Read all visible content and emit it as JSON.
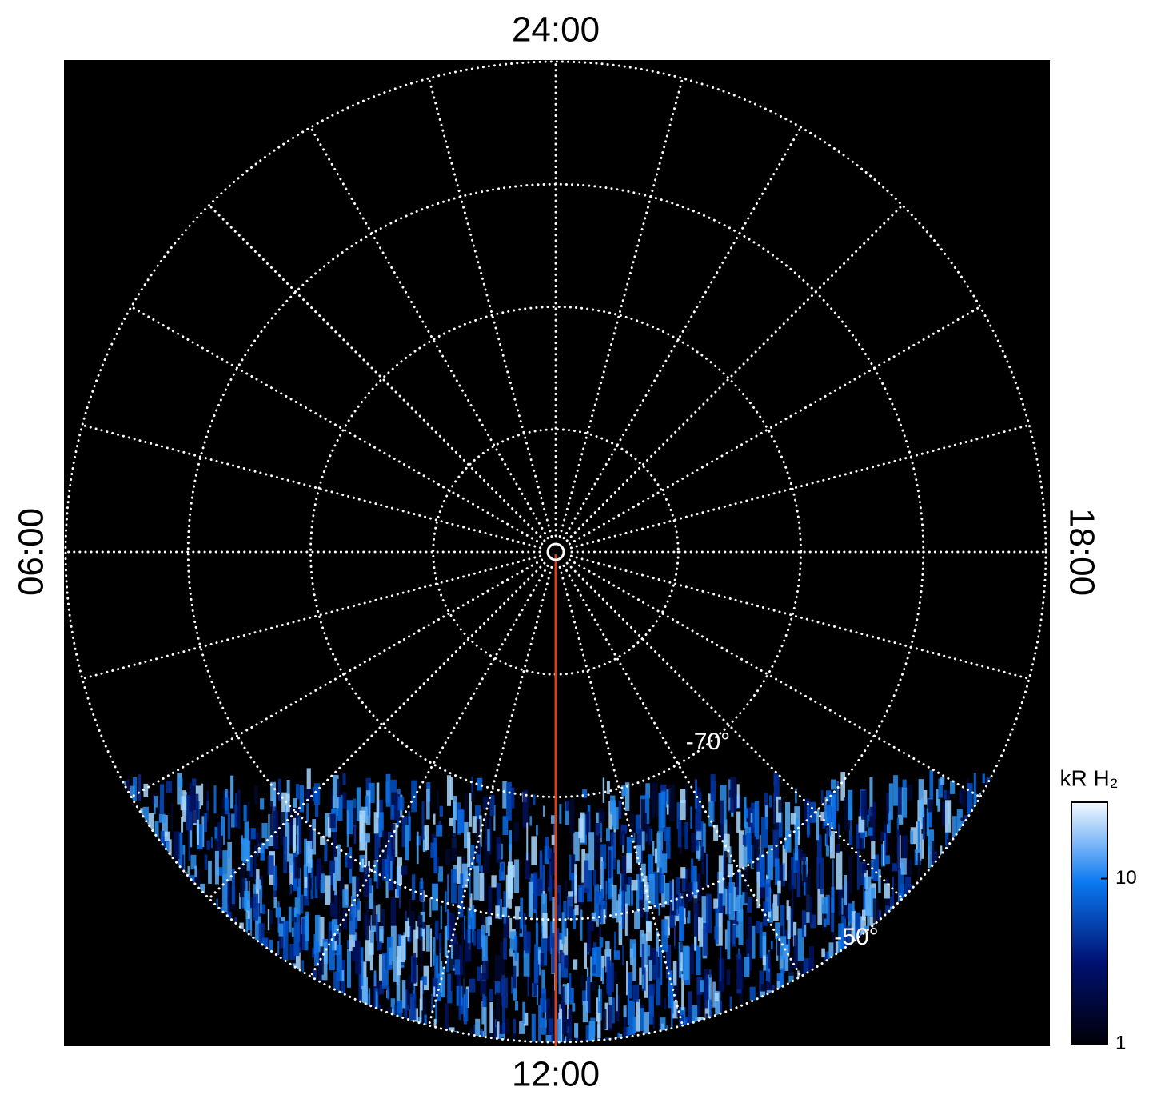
{
  "chart_data": {
    "type": "polar",
    "labels": {
      "top": "24:00",
      "left": "06:00",
      "right": "18:00",
      "bottom": "12:00"
    },
    "rlim": [
      -90,
      -50
    ],
    "grid_rings": [
      -80,
      -70,
      -60,
      -50
    ],
    "ring_labels": [
      {
        "value": -70,
        "label": "-70°"
      },
      {
        "value": -50,
        "label": "-50°"
      }
    ],
    "spoke_step_hours": 1,
    "colorbar": {
      "title": "kR H₂",
      "log": true,
      "lim": [
        1,
        29
      ],
      "ticks": [
        1,
        10
      ],
      "colors": [
        "#000008",
        "#001070",
        "#0a78f0",
        "#f4faff"
      ]
    }
  }
}
